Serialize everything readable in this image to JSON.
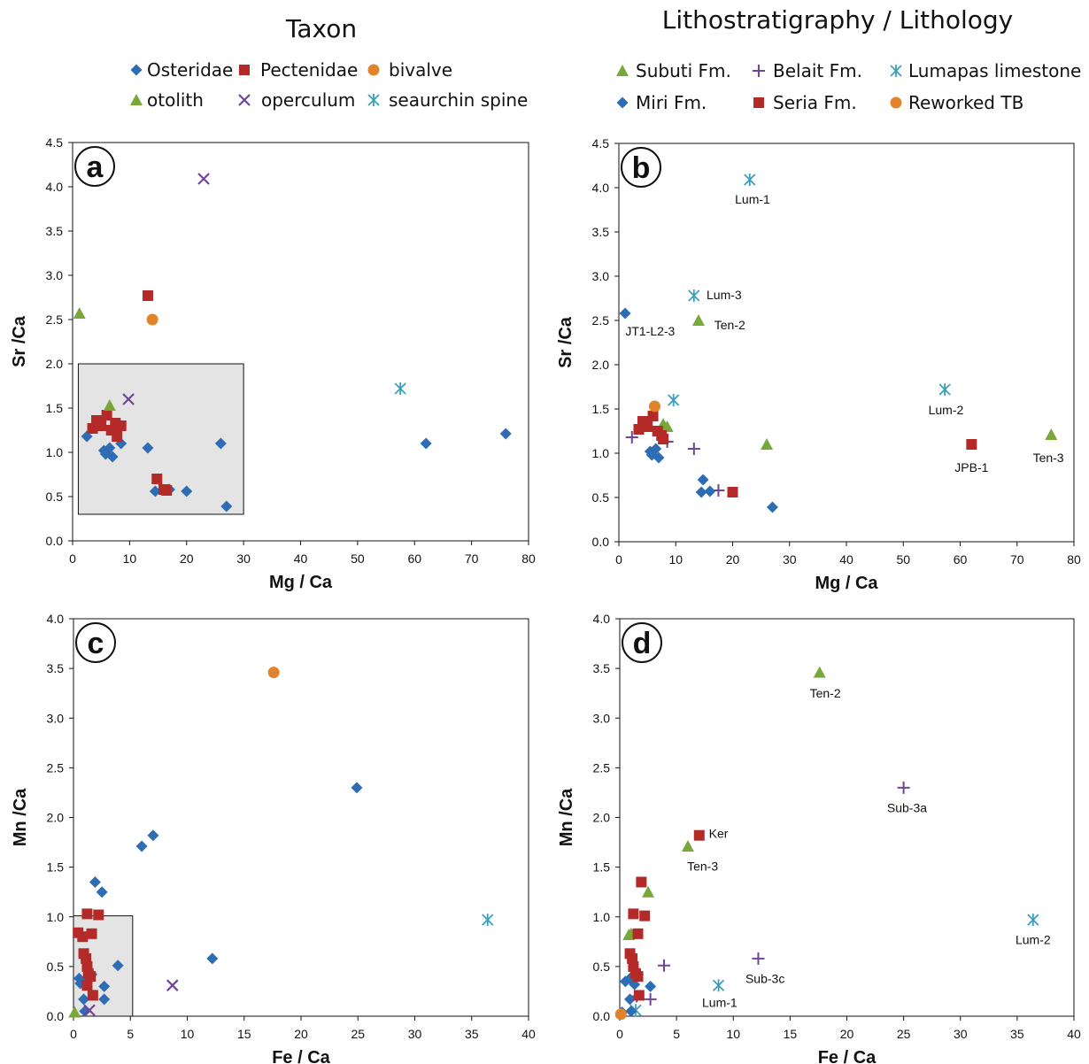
{
  "headings": {
    "left": "Taxon",
    "right": "Lithostratigraphy / Lithology"
  },
  "colors": {
    "blue": "#2e6db4",
    "red": "#b42a28",
    "orange": "#e0832a",
    "green": "#79a83a",
    "purple": "#6e4695",
    "teal": "#3a9fbc",
    "inset": "#e4e4e4"
  },
  "legends": {
    "taxon": [
      {
        "label": "Osteridae",
        "marker": "diamond",
        "color": "blue"
      },
      {
        "label": "Pectenidae",
        "marker": "square",
        "color": "red"
      },
      {
        "label": "bivalve",
        "marker": "circle",
        "color": "orange"
      },
      {
        "label": "otolith",
        "marker": "triangle",
        "color": "green"
      },
      {
        "label": "operculum",
        "marker": "x",
        "color": "purple"
      },
      {
        "label": "seaurchin spine",
        "marker": "asterisk",
        "color": "teal"
      }
    ],
    "litho": [
      {
        "label": "Subuti Fm.",
        "marker": "triangle",
        "color": "green"
      },
      {
        "label": "Belait Fm.",
        "marker": "plus",
        "color": "purple"
      },
      {
        "label": "Lumapas limestone",
        "marker": "asterisk",
        "color": "teal"
      },
      {
        "label": "Miri Fm.",
        "marker": "diamond",
        "color": "blue"
      },
      {
        "label": "Seria Fm.",
        "marker": "square",
        "color": "red"
      },
      {
        "label": "Reworked TB",
        "marker": "circle",
        "color": "orange"
      }
    ]
  },
  "chart_data": [
    {
      "panel": "a",
      "type": "scatter",
      "xlabel": "Mg / Ca",
      "ylabel": "Sr /Ca",
      "xlim": [
        0,
        80
      ],
      "ylim": [
        0,
        4.5
      ],
      "xticks": [
        "0",
        "10",
        "20",
        "30",
        "40",
        "50",
        "60",
        "70",
        "80"
      ],
      "yticks": [
        "0.0",
        "0.5",
        "1.0",
        "1.5",
        "2.0",
        "2.5",
        "3.0",
        "3.5",
        "4.0",
        "4.5"
      ],
      "inset": {
        "x": [
          1,
          30
        ],
        "y": [
          0.3,
          2.0
        ]
      },
      "series": [
        {
          "name": "Osteridae",
          "marker": "diamond",
          "color": "blue",
          "points": [
            [
              2.5,
              1.18
            ],
            [
              5.5,
              1.02
            ],
            [
              5.8,
              0.98
            ],
            [
              6.5,
              1.05
            ],
            [
              7,
              0.95
            ],
            [
              8.5,
              1.1
            ],
            [
              13.2,
              1.05
            ],
            [
              14.5,
              0.56
            ],
            [
              17,
              0.58
            ],
            [
              20,
              0.56
            ],
            [
              26,
              1.1
            ],
            [
              27,
              0.39
            ],
            [
              62,
              1.1
            ],
            [
              76,
              1.21
            ]
          ]
        },
        {
          "name": "Pectenidae",
          "marker": "square",
          "color": "red",
          "points": [
            [
              3.5,
              1.27
            ],
            [
              4.2,
              1.36
            ],
            [
              5,
              1.3
            ],
            [
              6,
              1.42
            ],
            [
              6.8,
              1.25
            ],
            [
              7.5,
              1.33
            ],
            [
              7.8,
              1.18
            ],
            [
              8.5,
              1.3
            ],
            [
              13.2,
              2.77
            ],
            [
              14.8,
              0.7
            ],
            [
              16,
              0.58
            ],
            [
              16.5,
              0.57
            ]
          ]
        },
        {
          "name": "bivalve",
          "marker": "circle",
          "color": "orange",
          "points": [
            [
              14,
              2.5
            ]
          ]
        },
        {
          "name": "otolith",
          "marker": "triangle",
          "color": "green",
          "points": [
            [
              1.2,
              2.57
            ],
            [
              6.5,
              1.53
            ]
          ]
        },
        {
          "name": "operculum",
          "marker": "x",
          "color": "purple",
          "points": [
            [
              23,
              4.09
            ],
            [
              9.8,
              1.6
            ]
          ]
        },
        {
          "name": "seaurchin spine",
          "marker": "asterisk",
          "color": "teal",
          "points": [
            [
              57.5,
              1.72
            ]
          ]
        }
      ],
      "annotations": []
    },
    {
      "panel": "b",
      "type": "scatter",
      "xlabel": "Mg / Ca",
      "ylabel": "Sr /Ca",
      "xlim": [
        0,
        80
      ],
      "ylim": [
        0,
        4.5
      ],
      "xticks": [
        "0",
        "10",
        "20",
        "30",
        "40",
        "50",
        "60",
        "70",
        "80"
      ],
      "yticks": [
        "0.0",
        "0.5",
        "1.0",
        "1.5",
        "2.0",
        "2.5",
        "3.0",
        "3.5",
        "4.0",
        "4.5"
      ],
      "series": [
        {
          "name": "Subuti Fm.",
          "marker": "triangle",
          "color": "green",
          "points": [
            [
              14,
              2.5
            ],
            [
              7.8,
              1.33
            ],
            [
              8.5,
              1.3
            ],
            [
              26,
              1.1
            ],
            [
              76,
              1.21
            ]
          ]
        },
        {
          "name": "Belait Fm.",
          "marker": "plus",
          "color": "purple",
          "points": [
            [
              2.3,
              1.18
            ],
            [
              8.5,
              1.13
            ],
            [
              13.2,
              1.05
            ],
            [
              17.5,
              0.58
            ]
          ]
        },
        {
          "name": "Lumapas limestone",
          "marker": "asterisk",
          "color": "teal",
          "points": [
            [
              23,
              4.09
            ],
            [
              13.2,
              2.78
            ],
            [
              9.6,
              1.6
            ],
            [
              57.3,
              1.72
            ]
          ]
        },
        {
          "name": "Miri Fm.",
          "marker": "diamond",
          "color": "blue",
          "points": [
            [
              1.1,
              2.58
            ],
            [
              5.5,
              1.02
            ],
            [
              5.8,
              0.98
            ],
            [
              6.5,
              1.05
            ],
            [
              7,
              0.95
            ],
            [
              14.8,
              0.7
            ],
            [
              14.5,
              0.56
            ],
            [
              16,
              0.57
            ],
            [
              27,
              0.39
            ]
          ]
        },
        {
          "name": "Seria Fm.",
          "marker": "square",
          "color": "red",
          "points": [
            [
              3.5,
              1.27
            ],
            [
              4.2,
              1.36
            ],
            [
              5,
              1.3
            ],
            [
              6,
              1.42
            ],
            [
              6.8,
              1.25
            ],
            [
              7.5,
              1.2
            ],
            [
              7.8,
              1.16
            ],
            [
              20,
              0.56
            ],
            [
              62,
              1.1
            ]
          ]
        },
        {
          "name": "Reworked TB",
          "marker": "circle",
          "color": "orange",
          "points": [
            [
              6.3,
              1.53
            ]
          ]
        }
      ],
      "annotations": [
        {
          "text": "Lum-1",
          "x": 23.5,
          "y": 3.87
        },
        {
          "text": "Lum-3",
          "x": 18.5,
          "y": 2.79
        },
        {
          "text": "JT1-L2-3",
          "x": 5.5,
          "y": 2.38
        },
        {
          "text": "Ten-2",
          "x": 19.5,
          "y": 2.45
        },
        {
          "text": "Lum-2",
          "x": 57.5,
          "y": 1.49
        },
        {
          "text": "JPB-1",
          "x": 62,
          "y": 0.84
        },
        {
          "text": "Ten-3",
          "x": 75.5,
          "y": 0.95
        }
      ]
    },
    {
      "panel": "c",
      "type": "scatter",
      "xlabel": "Fe / Ca",
      "ylabel": "Mn /Ca",
      "xlim": [
        0,
        40
      ],
      "ylim": [
        0,
        4.0
      ],
      "xticks": [
        "0",
        "5",
        "10",
        "15",
        "20",
        "25",
        "30",
        "35",
        "40"
      ],
      "yticks": [
        "0.0",
        "0.5",
        "1.0",
        "1.5",
        "2.0",
        "2.5",
        "3.0",
        "3.5",
        "4.0"
      ],
      "inset": {
        "x": [
          0,
          5.2
        ],
        "y": [
          0,
          1.01
        ]
      },
      "series": [
        {
          "name": "Osteridae",
          "marker": "diamond",
          "color": "blue",
          "points": [
            [
              0.5,
              0.38
            ],
            [
              0.6,
              0.33
            ],
            [
              0.9,
              0.17
            ],
            [
              1,
              0.05
            ],
            [
              1.3,
              0.37
            ],
            [
              1.6,
              0.42
            ],
            [
              1.9,
              1.35
            ],
            [
              2.5,
              1.25
            ],
            [
              2.7,
              0.3
            ],
            [
              2.7,
              0.17
            ],
            [
              3.9,
              0.51
            ],
            [
              6,
              1.71
            ],
            [
              7,
              1.82
            ],
            [
              12.2,
              0.58
            ],
            [
              24.9,
              2.3
            ]
          ]
        },
        {
          "name": "Pectenidae",
          "marker": "square",
          "color": "red",
          "points": [
            [
              0.4,
              0.84
            ],
            [
              0.8,
              0.8
            ],
            [
              1.2,
              1.03
            ],
            [
              1.6,
              0.83
            ],
            [
              2.2,
              1.02
            ],
            [
              0.9,
              0.63
            ],
            [
              1.1,
              0.58
            ],
            [
              1.2,
              0.5
            ],
            [
              1.3,
              0.43
            ],
            [
              1.5,
              0.4
            ],
            [
              1.2,
              0.31
            ],
            [
              1.7,
              0.21
            ]
          ]
        },
        {
          "name": "bivalve",
          "marker": "circle",
          "color": "orange",
          "points": [
            [
              17.6,
              3.46
            ]
          ]
        },
        {
          "name": "otolith",
          "marker": "triangle",
          "color": "green",
          "points": [
            [
              0.1,
              0.04
            ]
          ]
        },
        {
          "name": "operculum",
          "marker": "x",
          "color": "purple",
          "points": [
            [
              8.7,
              0.31
            ],
            [
              1.4,
              0.06
            ]
          ]
        },
        {
          "name": "seaurchin spine",
          "marker": "asterisk",
          "color": "teal",
          "points": [
            [
              36.4,
              0.97
            ]
          ]
        }
      ],
      "annotations": []
    },
    {
      "panel": "d",
      "type": "scatter",
      "xlabel": "Fe / Ca",
      "ylabel": "Mn /Ca",
      "xlim": [
        0,
        40
      ],
      "ylim": [
        0,
        4.0
      ],
      "xticks": [
        "0",
        "5",
        "10",
        "15",
        "20",
        "25",
        "30",
        "35",
        "40"
      ],
      "yticks": [
        "0.0",
        "0.5",
        "1.0",
        "1.5",
        "2.0",
        "2.5",
        "3.0",
        "3.5",
        "4.0"
      ],
      "series": [
        {
          "name": "Subuti Fm.",
          "marker": "triangle",
          "color": "green",
          "points": [
            [
              17.6,
              3.46
            ],
            [
              6,
              1.71
            ],
            [
              2.5,
              1.25
            ],
            [
              0.8,
              0.82
            ],
            [
              1,
              0.83
            ]
          ]
        },
        {
          "name": "Belait Fm.",
          "marker": "plus",
          "color": "purple",
          "points": [
            [
              25,
              2.3
            ],
            [
              12.2,
              0.58
            ],
            [
              3.9,
              0.51
            ],
            [
              2.7,
              0.17
            ],
            [
              1.5,
              0.2
            ]
          ]
        },
        {
          "name": "Lumapas limestone",
          "marker": "asterisk",
          "color": "teal",
          "points": [
            [
              36.4,
              0.97
            ],
            [
              8.7,
              0.31
            ],
            [
              1.4,
              0.06
            ]
          ]
        },
        {
          "name": "Miri Fm.",
          "marker": "diamond",
          "color": "blue",
          "points": [
            [
              0.5,
              0.35
            ],
            [
              0.9,
              0.38
            ],
            [
              1.3,
              0.32
            ],
            [
              1.6,
              0.42
            ],
            [
              2.7,
              0.3
            ],
            [
              0.9,
              0.17
            ],
            [
              1,
              0.05
            ],
            [
              0.2,
              0.04
            ]
          ]
        },
        {
          "name": "Seria Fm.",
          "marker": "square",
          "color": "red",
          "points": [
            [
              7,
              1.82
            ],
            [
              1.9,
              1.35
            ],
            [
              1.2,
              1.03
            ],
            [
              2.2,
              1.01
            ],
            [
              1.6,
              0.83
            ],
            [
              0.9,
              0.63
            ],
            [
              1.1,
              0.58
            ],
            [
              1.2,
              0.5
            ],
            [
              1.4,
              0.43
            ],
            [
              1.6,
              0.4
            ],
            [
              1.7,
              0.21
            ]
          ]
        },
        {
          "name": "Reworked TB",
          "marker": "circle",
          "color": "orange",
          "points": [
            [
              0.1,
              0.02
            ]
          ]
        }
      ],
      "annotations": [
        {
          "text": "Ten-2",
          "x": 18.1,
          "y": 3.25
        },
        {
          "text": "Ker",
          "x": 8.7,
          "y": 1.84
        },
        {
          "text": "Ten-3",
          "x": 7.3,
          "y": 1.51
        },
        {
          "text": "Sub-3a",
          "x": 25.3,
          "y": 2.1
        },
        {
          "text": "Lum-2",
          "x": 36.4,
          "y": 0.77
        },
        {
          "text": "Sub-3c",
          "x": 12.8,
          "y": 0.38
        },
        {
          "text": "Lum-1",
          "x": 8.8,
          "y": 1.0,
          "y_override": 0.14
        }
      ]
    }
  ]
}
